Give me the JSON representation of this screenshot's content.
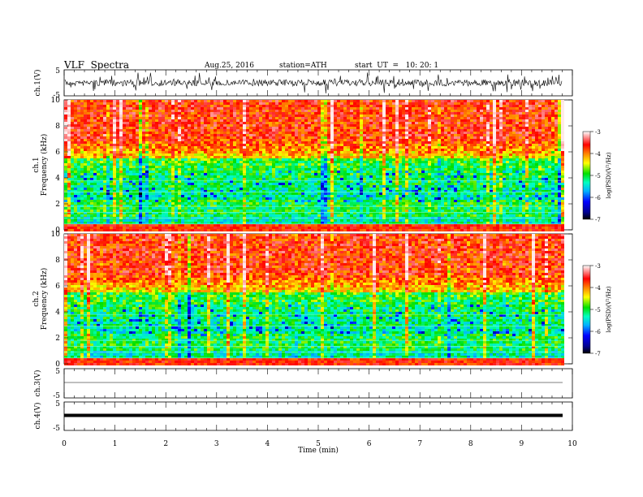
{
  "header": {
    "title": "VLF  Spectra",
    "date": "Aug.25, 2016",
    "station": "station=ATH",
    "start": "start  UT  =   10: 20: 1"
  },
  "chart_data": [
    {
      "type": "line",
      "panel": "ch1-waveform",
      "ylabel": "ch.1(V)",
      "ylim": [
        -5,
        5
      ],
      "yticks": [
        "5",
        "-5"
      ],
      "xlim": [
        0,
        10
      ]
    },
    {
      "type": "heatmap",
      "panel": "ch1-spectrogram",
      "ylabel_line1": "ch.1",
      "ylabel_line2": "Frequency  (kHz)",
      "ylim": [
        0,
        10
      ],
      "yticks": [
        "10",
        "8",
        "6",
        "4",
        "2",
        "0"
      ],
      "xlim": [
        0,
        9.8
      ],
      "colorbar": {
        "label": "log(PSD)(V²/Hz)",
        "range": [
          -7,
          -3
        ],
        "ticks": [
          "-3",
          "-4",
          "-5",
          "-6",
          "-7"
        ]
      }
    },
    {
      "type": "heatmap",
      "panel": "ch2-spectrogram",
      "ylabel_line1": "ch.2",
      "ylabel_line2": "Frequency  (kHz)",
      "ylim": [
        0,
        10
      ],
      "yticks": [
        "10",
        "8",
        "6",
        "4",
        "2",
        "0"
      ],
      "xlim": [
        0,
        9.8
      ],
      "colorbar": {
        "label": "log(PSD)(V²/Hz)",
        "range": [
          -7,
          -3
        ],
        "ticks": [
          "-3",
          "-4",
          "-5",
          "-6",
          "-7"
        ]
      }
    },
    {
      "type": "line",
      "panel": "ch3-waveform",
      "ylabel": "ch.3(V)",
      "ylim": [
        -5,
        5
      ],
      "yticks": [
        "5",
        "-5"
      ]
    },
    {
      "type": "line",
      "panel": "ch4-waveform",
      "ylabel": "ch.4(V)",
      "ylim": [
        -5,
        5
      ],
      "yticks": [
        "5",
        "-5"
      ],
      "xlabel": "Time  (min)",
      "xticks": [
        "0",
        "1",
        "2",
        "3",
        "4",
        "5",
        "6",
        "7",
        "8",
        "9",
        "10"
      ],
      "xlim": [
        0,
        10
      ]
    }
  ]
}
